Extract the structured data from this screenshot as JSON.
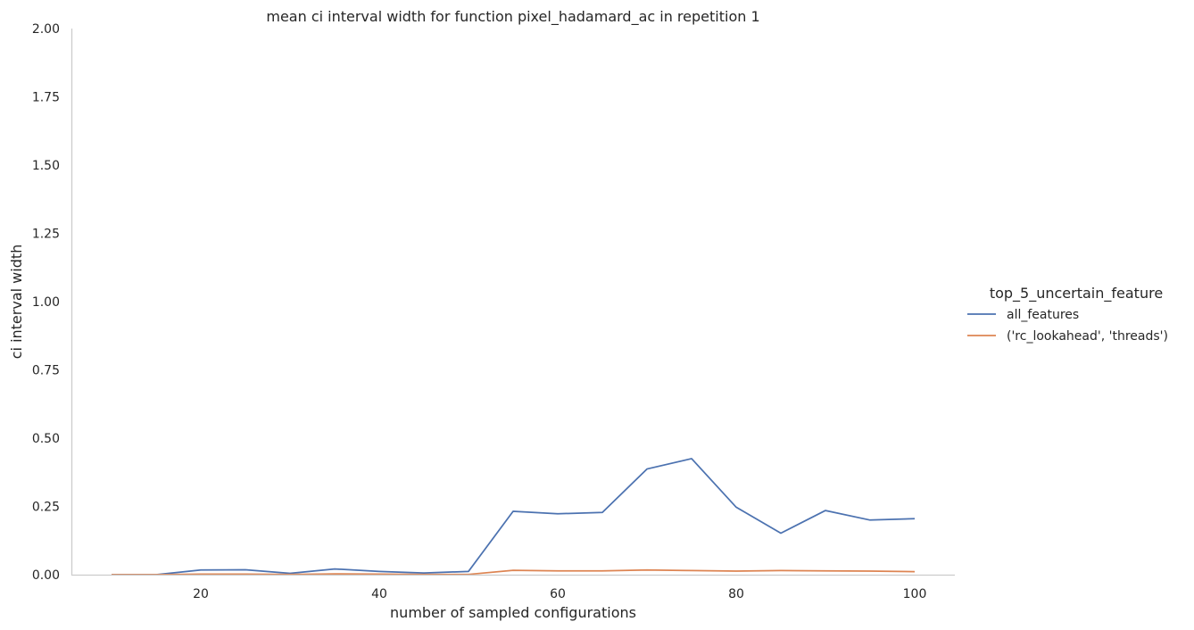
{
  "chart_data": {
    "type": "line",
    "title": "mean ci interval width for function pixel_hadamard_ac in repetition 1",
    "xlabel": "number of sampled configurations",
    "ylabel": "ci interval width",
    "xlim": [
      5.5,
      104.5
    ],
    "ylim": [
      0,
      2
    ],
    "xticks": [
      "20",
      "40",
      "60",
      "80",
      "100"
    ],
    "yticks": [
      "0.00",
      "0.25",
      "0.50",
      "0.75",
      "1.00",
      "1.25",
      "1.50",
      "1.75",
      "2.00"
    ],
    "grid": false,
    "legend": {
      "title": "top_5_uncertain_feature",
      "placement": "right"
    },
    "series": [
      {
        "name": "all_features",
        "color": "#4c72b0",
        "x": [
          10,
          15,
          20,
          25,
          30,
          35,
          40,
          45,
          50,
          55,
          60,
          65,
          70,
          75,
          80,
          85,
          90,
          95,
          100
        ],
        "y": [
          0.0,
          0.0,
          0.017,
          0.018,
          0.005,
          0.021,
          0.012,
          0.006,
          0.012,
          0.232,
          0.223,
          0.228,
          0.387,
          0.425,
          0.247,
          0.152,
          0.235,
          0.2,
          0.205
        ]
      },
      {
        "name": "('rc_lookahead', 'threads')",
        "color": "#dd8452",
        "x": [
          10,
          15,
          20,
          25,
          30,
          35,
          40,
          45,
          50,
          55,
          60,
          65,
          70,
          75,
          80,
          85,
          90,
          95,
          100
        ],
        "y": [
          0.0,
          0.0,
          0.002,
          0.002,
          0.001,
          0.003,
          0.002,
          0.001,
          0.001,
          0.016,
          0.014,
          0.014,
          0.017,
          0.015,
          0.013,
          0.015,
          0.014,
          0.013,
          0.011
        ]
      }
    ]
  }
}
